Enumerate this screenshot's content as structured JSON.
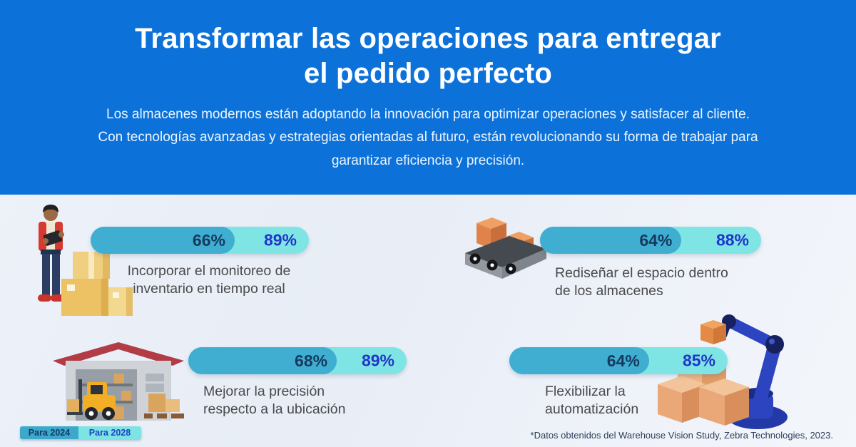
{
  "header": {
    "bg_color": "#0C72DA",
    "title_line1": "Transformar las operaciones para entregar",
    "title_line2": "el pedido perfecto",
    "subtitle_lines": [
      "Los almacenes modernos están adoptando la innovación para optimizar operaciones y satisfacer al cliente.",
      "Con tecnologías avanzadas y estrategias orientadas al futuro, están revolucionando su forma de trabajar para",
      "garantizar eficiencia y precisión."
    ]
  },
  "chart_data": {
    "type": "bar",
    "title": "Transformar las operaciones para entregar el pedido perfecto",
    "categories": [
      "Incorporar el monitoreo de inventario en tiempo real",
      "Rediseñar el espacio dentro de los almacenes",
      "Mejorar la precisión respecto a la ubicación",
      "Flexibilizar la automatización"
    ],
    "series": [
      {
        "name": "Para 2024",
        "values": [
          66,
          64,
          68,
          64
        ],
        "color": "#3FAED0"
      },
      {
        "name": "Para 2028",
        "values": [
          89,
          88,
          89,
          85
        ],
        "color": "#7EE5E4"
      }
    ],
    "unit": "%",
    "value_range": [
      0,
      100
    ],
    "grid": false,
    "legend_position": "bottom-left"
  },
  "stats": [
    {
      "pct_2024": "66%",
      "pct_2028": "89%",
      "label_line1": "Incorporar el monitoreo de",
      "label_line2": "inventario en tiempo real",
      "icon": "warehouse-worker-with-boxes"
    },
    {
      "pct_2024": "64%",
      "pct_2028": "88%",
      "label_line1": "Rediseñar el espacio dentro",
      "label_line2": "de los almacenes",
      "icon": "conveyor-belt-boxes"
    },
    {
      "pct_2024": "68%",
      "pct_2028": "89%",
      "label_line1": "Mejorar la precisión",
      "label_line2": "respecto a la ubicación",
      "icon": "warehouse-forklift"
    },
    {
      "pct_2024": "64%",
      "pct_2028": "85%",
      "label_line1": "Flexibilizar la",
      "label_line2": "automatización",
      "icon": "robotic-arm-boxes"
    }
  ],
  "legend": {
    "items": [
      {
        "label": "Para 2024",
        "color": "#3CA9CB",
        "text_color": "#14386B"
      },
      {
        "label": "Para 2028",
        "color": "#7EE4E3",
        "text_color": "#1B43C9"
      }
    ]
  },
  "footer": {
    "source_note": "*Datos obtenidos del Warehouse Vision Study, Zebra Technologies, 2023."
  },
  "colors": {
    "header_bg": "#0C72DA",
    "body_bg": "#E9EDF6",
    "bar_2024": "#3FAED0",
    "bar_2028": "#7EE5E4",
    "pct_2024_text": "#163A5F",
    "pct_2028_text": "#2135C8",
    "label_text": "#4A4A4C"
  }
}
